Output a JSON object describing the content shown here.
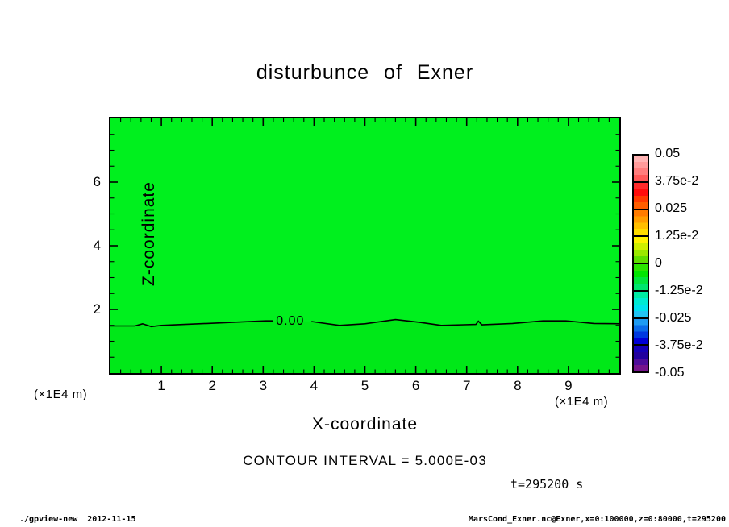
{
  "page": {
    "title": "disturbunce of Exner"
  },
  "axes": {
    "x": {
      "label": "X-coordinate",
      "unit": "(×1E4 m)",
      "major_ticks": [
        1,
        2,
        3,
        4,
        5,
        6,
        7,
        8,
        9
      ],
      "range": [
        0,
        10
      ],
      "minor_step": 0.2
    },
    "y": {
      "label": "Z-coordinate",
      "unit": "(×1E4 m)",
      "major_ticks": [
        2,
        4,
        6
      ],
      "range": [
        0,
        8
      ],
      "minor_step": 0.5
    }
  },
  "colorbar": {
    "labels": [
      "0.05",
      "3.75e-2",
      "0.025",
      "1.25e-2",
      "0",
      "-1.25e-2",
      "-0.025",
      "-3.75e-2",
      "-0.05"
    ],
    "sections": [
      {
        "colors": [
          "#ffb4b4",
          "#ff9a9a",
          "#ff7d7d",
          "#ff5a5a"
        ]
      },
      {
        "colors": [
          "#ff2a2a",
          "#ff0c0c",
          "#ff3a00",
          "#ff5e00"
        ]
      },
      {
        "colors": [
          "#ff7b00",
          "#ff9c00",
          "#ffbe00",
          "#ffdc00"
        ]
      },
      {
        "colors": [
          "#fff200",
          "#cfef00",
          "#9be800",
          "#5fde00"
        ]
      },
      {
        "colors": [
          "#2be500",
          "#00e500",
          "#00e53b",
          "#00e56e"
        ]
      },
      {
        "colors": [
          "#00eba4",
          "#00ead2",
          "#00e2ee",
          "#22c4f4"
        ]
      },
      {
        "colors": [
          "#1e9bf2",
          "#0b6be8",
          "#0039e0",
          "#0000d6"
        ]
      },
      {
        "colors": [
          "#1500b8",
          "#22009e",
          "#4e0c9a",
          "#76148c"
        ]
      }
    ]
  },
  "annotations": {
    "contour_interval": "CONTOUR INTERVAL = 5.000E-03",
    "time": "t=295200 s",
    "contour_label": "0.00"
  },
  "footer": {
    "left": "./gpview-new  2012-11-15",
    "right": "MarsCond_Exner.nc@Exner,x=0:100000,z=0:80000,t=295200"
  },
  "chart_data": {
    "type": "contour",
    "title": "disturbunce of Exner",
    "xlabel": "X-coordinate",
    "ylabel": "Z-coordinate",
    "x_range_e4m": [
      0,
      10
    ],
    "z_range_e4m": [
      0,
      8
    ],
    "x_range_m": "x=0:100000",
    "z_range_m": "z=0:80000",
    "time_s": 295200,
    "contour_interval": 0.005,
    "colorbar_levels": [
      0.05,
      0.0375,
      0.025,
      0.0125,
      0,
      -0.0125,
      -0.025,
      -0.0375,
      -0.05
    ],
    "field_fill_above_zero": "#00f01e",
    "field_fill_below_zero": "#00e818",
    "zero_contour_level": 0.0,
    "zero_contour_label_pos_e4m": [
      3.57,
      1.62
    ],
    "zero_contour_segments_e4m": [
      [
        [
          0,
          1.48
        ],
        [
          0.48,
          1.48
        ],
        [
          0.63,
          1.55
        ],
        [
          0.8,
          1.46
        ],
        [
          1.0,
          1.5
        ],
        [
          1.9,
          1.56
        ],
        [
          2.6,
          1.61
        ],
        [
          3.05,
          1.64
        ],
        [
          3.2,
          1.64
        ]
      ],
      [
        [
          3.95,
          1.62
        ],
        [
          4.5,
          1.5
        ],
        [
          5.0,
          1.55
        ],
        [
          5.6,
          1.68
        ],
        [
          6.1,
          1.59
        ],
        [
          6.5,
          1.5
        ],
        [
          6.95,
          1.52
        ],
        [
          7.18,
          1.53
        ],
        [
          7.23,
          1.63
        ],
        [
          7.3,
          1.52
        ],
        [
          7.9,
          1.56
        ],
        [
          8.5,
          1.64
        ],
        [
          8.95,
          1.64
        ],
        [
          9.5,
          1.56
        ],
        [
          10.0,
          1.55
        ]
      ]
    ],
    "legend_position": "right",
    "grid": false
  }
}
